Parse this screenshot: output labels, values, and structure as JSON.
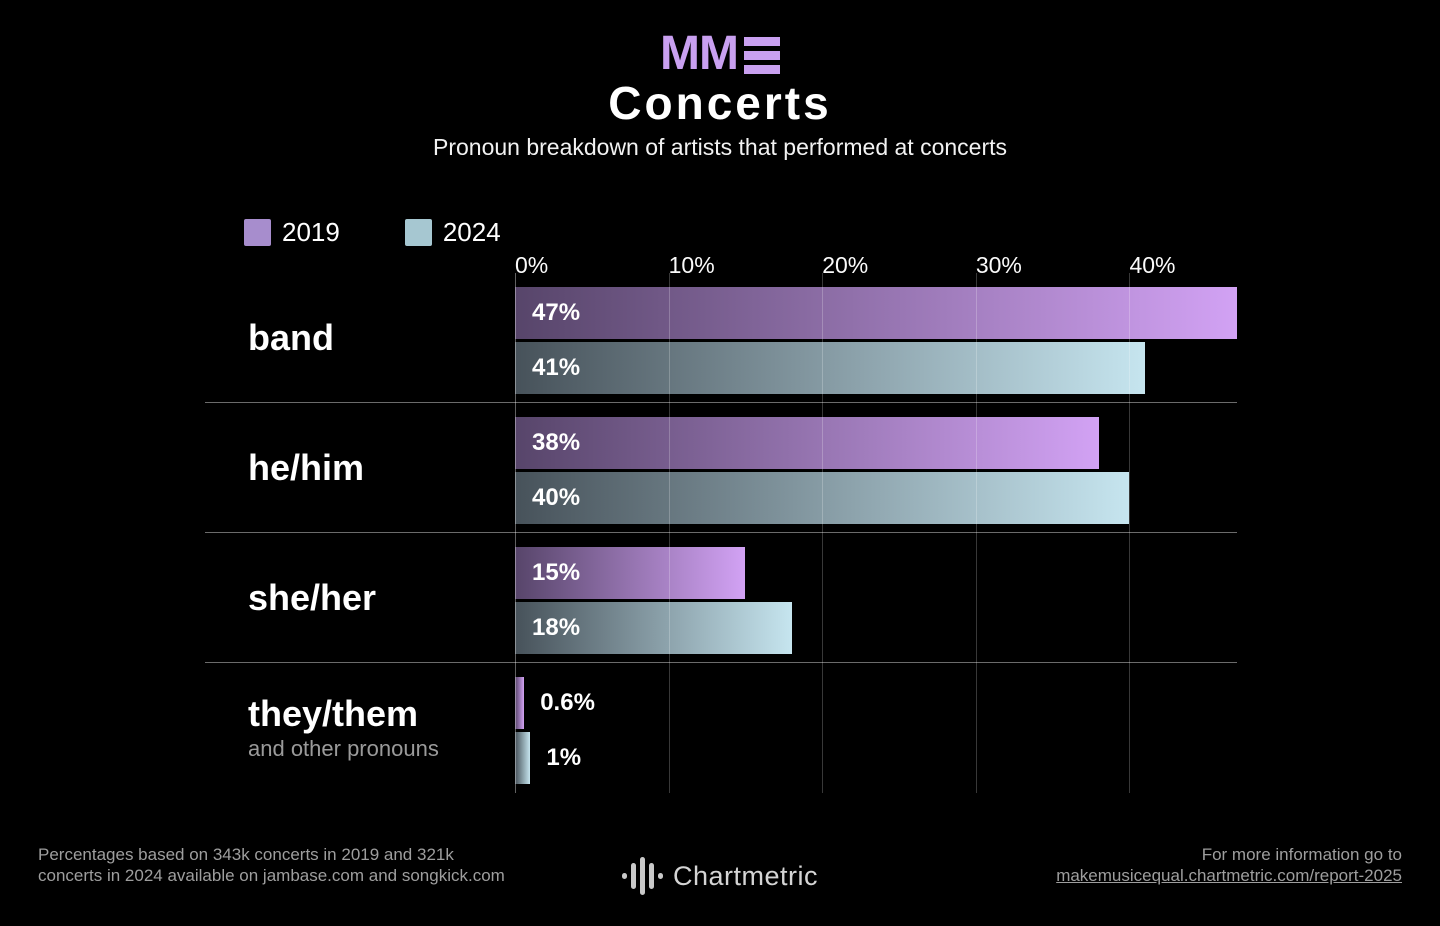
{
  "header": {
    "logo_text": "MM",
    "title": "Concerts",
    "subtitle": "Pronoun breakdown of artists that performed at concerts",
    "logo_color": "#c9a0f0"
  },
  "legend": {
    "items": [
      {
        "label": "2019",
        "color": "#a78dcd"
      },
      {
        "label": "2024",
        "color": "#a6c7d1"
      }
    ]
  },
  "chart_data": {
    "type": "bar",
    "orientation": "horizontal",
    "title": "Concerts",
    "subtitle": "Pronoun breakdown of artists that performed at concerts",
    "categories": [
      "band",
      "he/him",
      "she/her",
      "they/them"
    ],
    "category_subtitles": [
      "",
      "",
      "",
      "and other pronouns"
    ],
    "series": [
      {
        "name": "2019",
        "values": [
          47,
          38,
          15,
          0.6
        ],
        "labels": [
          "47%",
          "38%",
          "15%",
          "0.6%"
        ],
        "gradient_start": "#57456a",
        "gradient_end": "#d2a2f4"
      },
      {
        "name": "2024",
        "values": [
          41,
          40,
          18,
          1
        ],
        "labels": [
          "41%",
          "40%",
          "18%",
          "1%"
        ],
        "gradient_start": "#47525a",
        "gradient_end": "#c6e5ef"
      }
    ],
    "x_axis": {
      "tick_labels": [
        "0%",
        "10%",
        "20%",
        "30%",
        "40%"
      ],
      "tick_values": [
        0,
        10,
        20,
        30,
        40
      ],
      "scale_max": 47
    },
    "grid": true,
    "legend_position": "top-left"
  },
  "footer": {
    "source_line1": "Percentages based on 343k concerts in 2019 and 321k",
    "source_line2": "concerts in 2024 available on jambase.com and songkick.com",
    "brand": "Chartmetric",
    "info_line1": "For more information go to",
    "info_link": "makemusicequal.chartmetric.com/report-2025"
  }
}
